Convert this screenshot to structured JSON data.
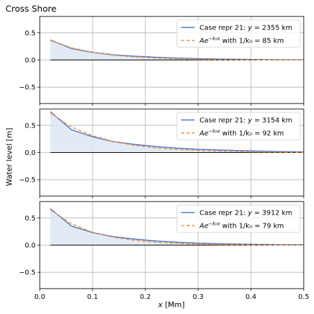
{
  "figure": {
    "title": "Cross Shore",
    "ylabel": "Water level [m]",
    "xlabel": "$x$ [Mm]",
    "xlabel_display": "x [Mm]"
  },
  "colors": {
    "model_line": "#4c78c9",
    "fit_line": "#f09443",
    "fill": "#dde6f5",
    "grid": "#b0b0b0",
    "zero_line": "#000000"
  },
  "chart_data": [
    {
      "type": "line",
      "xlim": [
        0.0,
        0.5
      ],
      "ylim": [
        -0.8,
        0.8
      ],
      "xticks": [
        0.0,
        0.1,
        0.2,
        0.3,
        0.4,
        0.5
      ],
      "yticks": [
        -0.5,
        0.0,
        0.5
      ],
      "ytick_labels": [
        "−0.5",
        "0.0",
        "0.5"
      ],
      "grid": true,
      "legend_position": "top-right",
      "legend": [
        {
          "prefix": "Case repr 21: ",
          "var": "y",
          "eq": " = 2355 km"
        },
        {
          "prefix": "",
          "var": "Ae",
          "sup": "−k₀x",
          "eq": " with 1/k₀ = 85 km"
        }
      ],
      "series": [
        {
          "name": "Case repr 21: y = 2355 km",
          "style": "solid",
          "x": [
            0.02,
            0.06,
            0.1,
            0.14,
            0.18,
            0.22,
            0.26,
            0.3,
            0.34,
            0.38,
            0.42,
            0.46,
            0.5
          ],
          "y": [
            0.37,
            0.21,
            0.14,
            0.095,
            0.07,
            0.05,
            0.035,
            0.025,
            0.018,
            0.012,
            0.008,
            0.005,
            0.003
          ]
        },
        {
          "name": "Ae^{-k0 x} with 1/k0 = 85 km",
          "style": "dashed",
          "x": [
            0.02,
            0.06,
            0.1,
            0.14,
            0.18,
            0.22,
            0.26,
            0.3,
            0.34,
            0.38,
            0.42,
            0.46,
            0.5
          ],
          "y": [
            0.36,
            0.225,
            0.14,
            0.088,
            0.055,
            0.034,
            0.021,
            0.013,
            0.008,
            0.005,
            0.003,
            0.002,
            0.001
          ]
        }
      ]
    },
    {
      "type": "line",
      "xlim": [
        0.0,
        0.5
      ],
      "ylim": [
        -0.8,
        0.8
      ],
      "xticks": [
        0.0,
        0.1,
        0.2,
        0.3,
        0.4,
        0.5
      ],
      "yticks": [
        -0.5,
        0.0,
        0.5
      ],
      "ytick_labels": [
        "−0.5",
        "0.0",
        "0.5"
      ],
      "grid": true,
      "legend_position": "top-right",
      "legend": [
        {
          "prefix": "Case repr 21: ",
          "var": "y",
          "eq": " = 3154 km"
        },
        {
          "prefix": "",
          "var": "Ae",
          "sup": "−k₀x",
          "eq": " with 1/k₀ = 92 km"
        }
      ],
      "series": [
        {
          "name": "Case repr 21: y = 3154 km",
          "style": "solid",
          "x": [
            0.02,
            0.06,
            0.1,
            0.14,
            0.18,
            0.22,
            0.26,
            0.3,
            0.34,
            0.38,
            0.42,
            0.46,
            0.5
          ],
          "y": [
            0.75,
            0.42,
            0.29,
            0.2,
            0.15,
            0.11,
            0.08,
            0.06,
            0.045,
            0.035,
            0.025,
            0.018,
            0.013
          ]
        },
        {
          "name": "Ae^{-k0 x} with 1/k0 = 92 km",
          "style": "dashed",
          "x": [
            0.02,
            0.06,
            0.1,
            0.14,
            0.18,
            0.22,
            0.26,
            0.3,
            0.34,
            0.38,
            0.42,
            0.46,
            0.5
          ],
          "y": [
            0.73,
            0.47,
            0.31,
            0.2,
            0.13,
            0.085,
            0.055,
            0.036,
            0.024,
            0.015,
            0.01,
            0.0065,
            0.004
          ]
        }
      ]
    },
    {
      "type": "line",
      "xlim": [
        0.0,
        0.5
      ],
      "ylim": [
        -0.8,
        0.8
      ],
      "xticks": [
        0.0,
        0.1,
        0.2,
        0.3,
        0.4,
        0.5
      ],
      "xtick_labels": [
        "0.0",
        "0.1",
        "0.2",
        "0.3",
        "0.4",
        "0.5"
      ],
      "yticks": [
        -0.5,
        0.0,
        0.5
      ],
      "ytick_labels": [
        "−0.5",
        "0.0",
        "0.5"
      ],
      "grid": true,
      "legend_position": "top-right",
      "legend": [
        {
          "prefix": "Case repr 21: ",
          "var": "y",
          "eq": " = 3912 km"
        },
        {
          "prefix": "",
          "var": "Ae",
          "sup": "−k₀x",
          "eq": " with 1/k₀ = 79 km"
        }
      ],
      "series": [
        {
          "name": "Case repr 21: y = 3912 km",
          "style": "solid",
          "x": [
            0.02,
            0.06,
            0.1,
            0.14,
            0.18,
            0.22,
            0.26,
            0.3,
            0.34,
            0.38,
            0.42,
            0.46,
            0.5
          ],
          "y": [
            0.67,
            0.35,
            0.23,
            0.155,
            0.11,
            0.075,
            0.052,
            0.036,
            0.025,
            0.017,
            0.012,
            0.008,
            0.006
          ]
        },
        {
          "name": "Ae^{-k0 x} with 1/k0 = 79 km",
          "style": "dashed",
          "x": [
            0.02,
            0.06,
            0.1,
            0.14,
            0.18,
            0.22,
            0.26,
            0.3,
            0.34,
            0.38,
            0.42,
            0.46,
            0.5
          ],
          "y": [
            0.65,
            0.39,
            0.235,
            0.142,
            0.086,
            0.052,
            0.031,
            0.019,
            0.0115,
            0.007,
            0.0042,
            0.0025,
            0.0015
          ]
        }
      ]
    }
  ]
}
